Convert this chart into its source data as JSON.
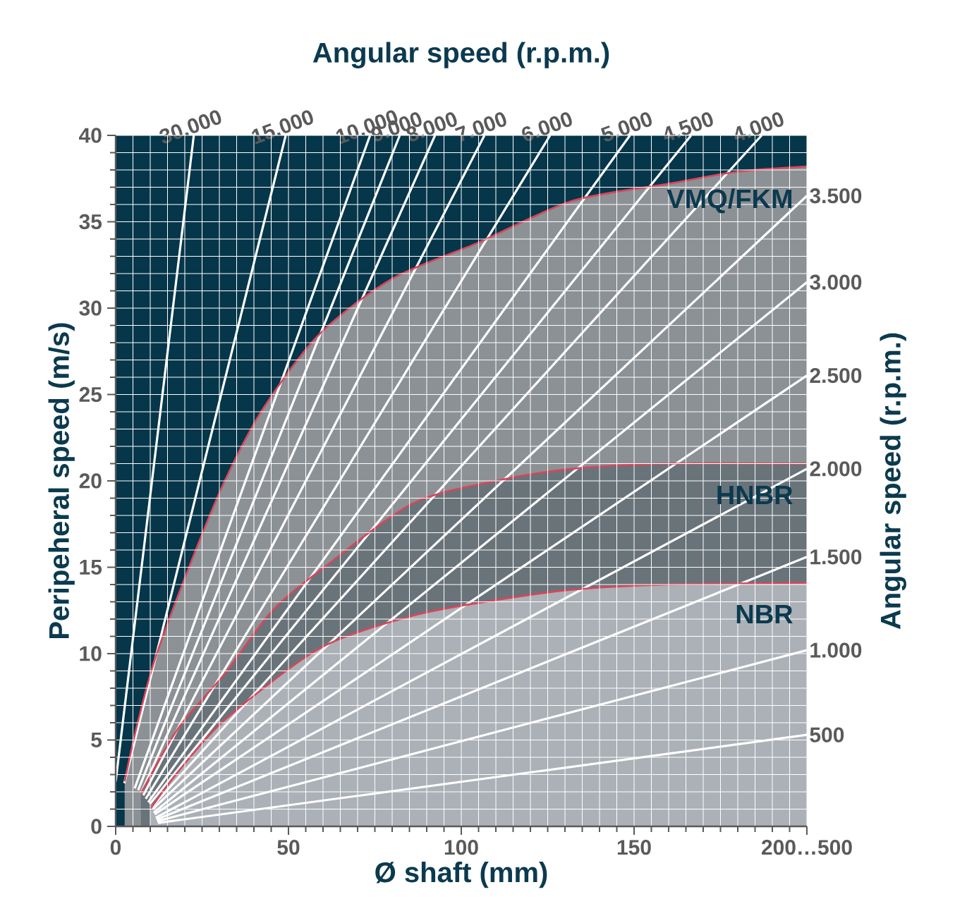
{
  "chart_data": {
    "type": "line",
    "title": "Angular speed (r.p.m.)",
    "xlabel": "Ø shaft (mm)",
    "ylabel": "Peripeheral speed (m/s)",
    "y2label": "Angular speed (r.p.m.)",
    "xlim": [
      0,
      200
    ],
    "ylim": [
      0,
      40
    ],
    "xticks": [
      0,
      50,
      100,
      150,
      {
        "value": 200,
        "label": "200…500"
      }
    ],
    "yticks": [
      0,
      5,
      10,
      15,
      20,
      25,
      30,
      35,
      40
    ],
    "grid": true,
    "bands": [
      {
        "axis": "x",
        "from": 0,
        "to": 200,
        "color": "#05364a"
      }
    ],
    "marker": "none",
    "line_style": "solid",
    "series": [
      {
        "name": "VMQ/FKM",
        "type": "area",
        "color": "#8c9195",
        "x": [
          2.6,
          6,
          11.4,
          22,
          31.8,
          42.7,
          59,
          80,
          105,
          132,
          160,
          180,
          200
        ],
        "values": [
          2.6,
          5.7,
          9.7,
          15.4,
          20.1,
          24.2,
          28.5,
          31.7,
          33.8,
          36.2,
          37.2,
          37.9,
          38.2
        ]
      },
      {
        "name": "HNBR",
        "type": "area",
        "color": "#69737a",
        "x": [
          7.3,
          18.2,
          31.8,
          45.4,
          61,
          86,
          110,
          132,
          160,
          200
        ],
        "values": [
          1.9,
          5.7,
          8.9,
          12.5,
          15.1,
          18.7,
          20,
          20.7,
          21,
          21
        ]
      },
      {
        "name": "NBR",
        "type": "area",
        "color": "#abb1b6",
        "x": [
          10,
          18.2,
          31.8,
          59,
          86,
          110,
          132,
          160,
          200
        ],
        "values": [
          1,
          3.2,
          6.2,
          10.3,
          12.2,
          13.1,
          13.7,
          14,
          14.1
        ]
      },
      {
        "color": "#ffffff",
        "x": [
          0,
          22.6
        ],
        "values": [
          2.6,
          40
        ]
      },
      {
        "color": "#ffffff",
        "x": [
          2.5,
          49.2
        ],
        "values": [
          2.5,
          40
        ]
      },
      {
        "color": "#ffffff",
        "x": [
          5.5,
          73.6
        ],
        "values": [
          2.2,
          40
        ]
      },
      {
        "color": "#ffffff",
        "x": [
          6.5,
          82.2
        ],
        "values": [
          2.1,
          40
        ]
      },
      {
        "color": "#ffffff",
        "x": [
          7.3,
          92.4
        ],
        "values": [
          1.9,
          40
        ]
      },
      {
        "color": "#ffffff",
        "x": [
          8,
          106.7
        ],
        "values": [
          1.8,
          40
        ]
      },
      {
        "color": "#ffffff",
        "x": [
          8.7,
          125.7
        ],
        "values": [
          1.6,
          40
        ]
      },
      {
        "color": "#ffffff",
        "x": [
          9.4,
          148.8
        ],
        "values": [
          1.4,
          40
        ]
      },
      {
        "color": "#ffffff",
        "x": [
          9.9,
          166.5
        ],
        "values": [
          1.3,
          40
        ]
      },
      {
        "color": "#ffffff",
        "x": [
          10.3,
          186.9
        ],
        "values": [
          1.1,
          40
        ]
      },
      {
        "color": "#ffffff",
        "x": [
          10.7,
          200
        ],
        "values": [
          1,
          36.5
        ]
      },
      {
        "color": "#ffffff",
        "x": [
          11,
          200
        ],
        "values": [
          0.8,
          31.5
        ]
      },
      {
        "color": "#ffffff",
        "x": [
          11.3,
          200
        ],
        "values": [
          0.7,
          26.1
        ]
      },
      {
        "color": "#ffffff",
        "x": [
          11.6,
          200
        ],
        "values": [
          0.5,
          20.7
        ]
      },
      {
        "color": "#ffffff",
        "x": [
          11.8,
          200
        ],
        "values": [
          0.4,
          15.6
        ]
      },
      {
        "color": "#ffffff",
        "x": [
          12,
          200
        ],
        "values": [
          0.3,
          10.2
        ]
      },
      {
        "color": "#ffffff",
        "x": [
          12.2,
          200
        ],
        "values": [
          0.2,
          5.3
        ]
      }
    ],
    "annotations": [
      {
        "text": "30.000",
        "x": 22.6,
        "y": 40
      },
      {
        "text": "15.000",
        "x": 49.2,
        "y": 40
      },
      {
        "text": "10.000",
        "x": 73.6,
        "y": 40
      },
      {
        "text": "9.000",
        "x": 82.2,
        "y": 40
      },
      {
        "text": "8.000",
        "x": 92.4,
        "y": 40
      },
      {
        "text": "7.000",
        "x": 106.7,
        "y": 40
      },
      {
        "text": "6.000",
        "x": 125.7,
        "y": 40
      },
      {
        "text": "5.000",
        "x": 148.8,
        "y": 40
      },
      {
        "text": "4.500",
        "x": 166.5,
        "y": 40
      },
      {
        "text": "4.000",
        "x": 186.9,
        "y": 40
      },
      {
        "text": "3.500",
        "x": 200,
        "y": 36.5
      },
      {
        "text": "3.000",
        "x": 200,
        "y": 31.5
      },
      {
        "text": "2.500",
        "x": 200,
        "y": 26.1
      },
      {
        "text": "2.000",
        "x": 200,
        "y": 20.7
      },
      {
        "text": "1.500",
        "x": 200,
        "y": 15.6
      },
      {
        "text": "1.000",
        "x": 200,
        "y": 10.2
      },
      {
        "text": "500",
        "x": 200,
        "y": 5.3
      }
    ]
  }
}
